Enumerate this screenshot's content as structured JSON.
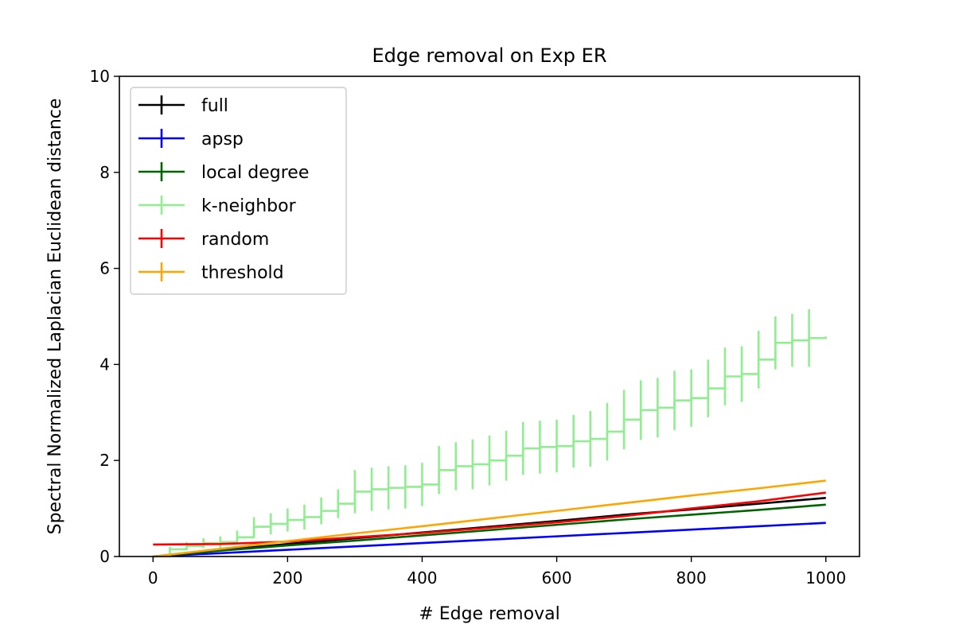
{
  "chart_data": {
    "type": "line",
    "title": "Edge removal on Exp ER",
    "xlabel": "# Edge removal",
    "ylabel": "Spectral Normalized Laplacian Euclidean distance",
    "xlim": [
      -50,
      1050
    ],
    "ylim": [
      0,
      10
    ],
    "xticks": [
      0,
      200,
      400,
      600,
      800,
      1000
    ],
    "xtick_labels": [
      "0",
      "200",
      "400",
      "600",
      "800",
      "1000"
    ],
    "yticks": [
      0,
      2,
      4,
      6,
      8,
      10
    ],
    "ytick_labels": [
      "0",
      "2",
      "4",
      "6",
      "8",
      "10"
    ],
    "grid": false,
    "legend_position": "upper-left",
    "series": [
      {
        "name": "full",
        "color": "#000000",
        "x": [
          0,
          100,
          200,
          300,
          400,
          500,
          600,
          700,
          800,
          900,
          1000
        ],
        "y": [
          0.0,
          0.13,
          0.26,
          0.38,
          0.5,
          0.62,
          0.74,
          0.87,
          0.98,
          1.1,
          1.22
        ]
      },
      {
        "name": "apsp",
        "color": "#0000ff",
        "x": [
          0,
          100,
          200,
          300,
          400,
          500,
          600,
          700,
          800,
          900,
          1000
        ],
        "y": [
          0.0,
          0.07,
          0.14,
          0.21,
          0.28,
          0.35,
          0.42,
          0.49,
          0.56,
          0.63,
          0.7
        ]
      },
      {
        "name": "local degree",
        "color": "#006400",
        "x": [
          0,
          100,
          200,
          300,
          400,
          500,
          600,
          700,
          800,
          900,
          1000
        ],
        "y": [
          0.0,
          0.12,
          0.23,
          0.33,
          0.44,
          0.55,
          0.66,
          0.77,
          0.87,
          0.97,
          1.08
        ]
      },
      {
        "name": "k-neighbor",
        "color": "#90ee90",
        "x": [
          0,
          25,
          50,
          75,
          100,
          125,
          150,
          175,
          200,
          225,
          250,
          275,
          300,
          325,
          350,
          375,
          400,
          425,
          450,
          475,
          500,
          525,
          550,
          575,
          600,
          625,
          650,
          675,
          700,
          725,
          750,
          775,
          800,
          825,
          850,
          875,
          900,
          925,
          950,
          975,
          1000
        ],
        "y": [
          0.0,
          0.15,
          0.22,
          0.28,
          0.3,
          0.4,
          0.62,
          0.68,
          0.76,
          0.82,
          0.95,
          1.1,
          1.35,
          1.4,
          1.43,
          1.45,
          1.5,
          1.8,
          1.88,
          1.92,
          2.0,
          2.1,
          2.25,
          2.28,
          2.3,
          2.4,
          2.45,
          2.6,
          2.85,
          3.05,
          3.1,
          3.25,
          3.3,
          3.5,
          3.75,
          3.8,
          4.1,
          4.45,
          4.5,
          4.55,
          4.58
        ],
        "err": [
          0.0,
          0.05,
          0.08,
          0.1,
          0.12,
          0.14,
          0.2,
          0.22,
          0.24,
          0.26,
          0.28,
          0.3,
          0.45,
          0.45,
          0.45,
          0.45,
          0.45,
          0.5,
          0.5,
          0.52,
          0.52,
          0.52,
          0.55,
          0.55,
          0.55,
          0.55,
          0.58,
          0.6,
          0.62,
          0.62,
          0.62,
          0.62,
          0.6,
          0.6,
          0.6,
          0.58,
          0.6,
          0.55,
          0.55,
          0.6,
          0.0
        ]
      },
      {
        "name": "random",
        "color": "#ff0000",
        "x": [
          0,
          100,
          200,
          300,
          400,
          500,
          600,
          700,
          800,
          900,
          1000
        ],
        "y": [
          0.25,
          0.26,
          0.31,
          0.4,
          0.49,
          0.6,
          0.71,
          0.84,
          1.0,
          1.15,
          1.33
        ]
      },
      {
        "name": "threshold",
        "color": "#ffa500",
        "x": [
          0,
          100,
          200,
          300,
          400,
          500,
          600,
          700,
          800,
          900,
          1000
        ],
        "y": [
          0.0,
          0.16,
          0.32,
          0.48,
          0.63,
          0.79,
          0.95,
          1.11,
          1.27,
          1.42,
          1.58
        ]
      }
    ]
  }
}
